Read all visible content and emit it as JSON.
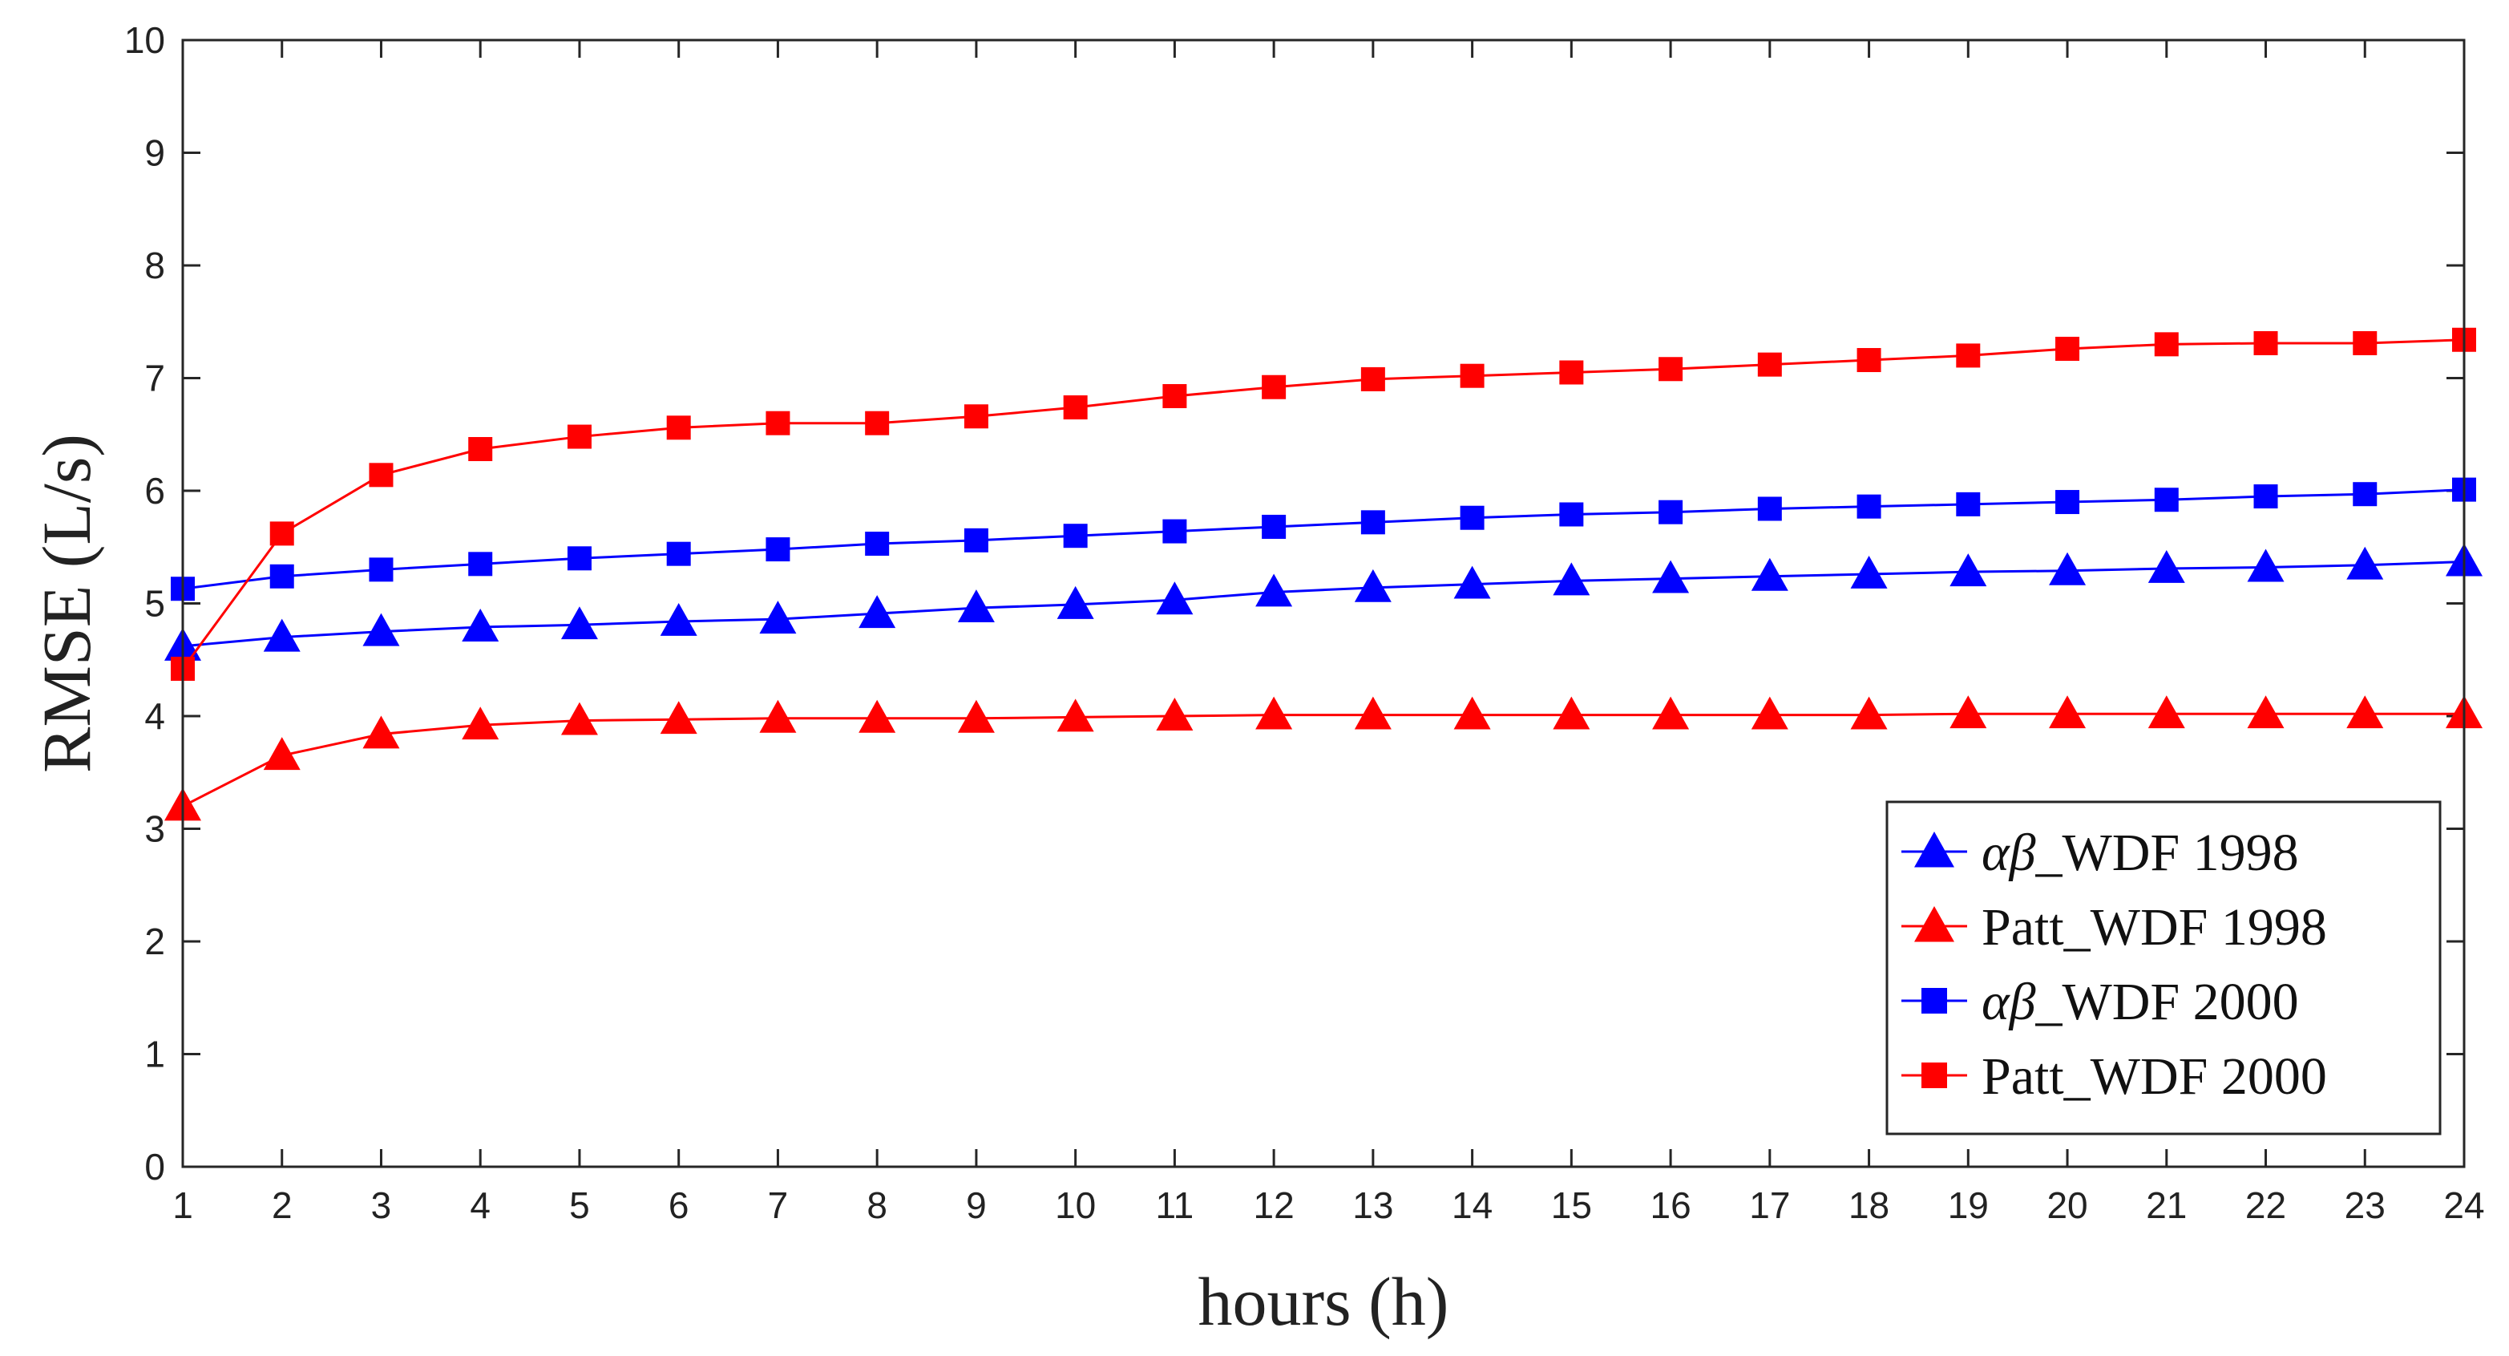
{
  "chart_data": {
    "type": "line",
    "xlabel": "hours (h)",
    "ylabel": "RMSE (L/s)",
    "xlim": [
      1,
      24
    ],
    "ylim": [
      0,
      10
    ],
    "xticks": [
      1,
      2,
      3,
      4,
      5,
      6,
      7,
      8,
      9,
      10,
      11,
      12,
      13,
      14,
      15,
      16,
      17,
      18,
      19,
      20,
      21,
      22,
      23,
      24
    ],
    "yticks": [
      0,
      1,
      2,
      3,
      4,
      5,
      6,
      7,
      8,
      9,
      10
    ],
    "grid": false,
    "legend_position": "bottom-right",
    "x": [
      1,
      2,
      3,
      4,
      5,
      6,
      7,
      8,
      9,
      10,
      11,
      12,
      13,
      14,
      15,
      16,
      17,
      18,
      19,
      20,
      21,
      22,
      23,
      24
    ],
    "series": [
      {
        "name": "αβ_WDF 1998",
        "name_greek": "αβ",
        "name_rest": "_WDF 1998",
        "color": "#0000ff",
        "marker": "triangle",
        "values": [
          4.62,
          4.7,
          4.75,
          4.79,
          4.81,
          4.84,
          4.86,
          4.91,
          4.96,
          4.99,
          5.03,
          5.1,
          5.14,
          5.17,
          5.2,
          5.22,
          5.24,
          5.26,
          5.28,
          5.29,
          5.31,
          5.32,
          5.34,
          5.37
        ]
      },
      {
        "name": "Patt_WDF 1998",
        "name_greek": "",
        "name_rest": "Patt_WDF 1998",
        "color": "#ff0000",
        "marker": "triangle",
        "values": [
          3.2,
          3.65,
          3.84,
          3.92,
          3.96,
          3.97,
          3.98,
          3.98,
          3.98,
          3.99,
          4.0,
          4.01,
          4.01,
          4.01,
          4.01,
          4.01,
          4.01,
          4.01,
          4.02,
          4.02,
          4.02,
          4.02,
          4.02,
          4.02
        ]
      },
      {
        "name": "αβ_WDF 2000",
        "name_greek": "αβ",
        "name_rest": "_WDF 2000",
        "color": "#0000ff",
        "marker": "square",
        "values": [
          5.13,
          5.24,
          5.3,
          5.35,
          5.4,
          5.44,
          5.48,
          5.53,
          5.56,
          5.6,
          5.64,
          5.68,
          5.72,
          5.76,
          5.79,
          5.81,
          5.84,
          5.86,
          5.88,
          5.9,
          5.92,
          5.95,
          5.97,
          6.01
        ]
      },
      {
        "name": "Patt_WDF 2000",
        "name_greek": "",
        "name_rest": "Patt_WDF 2000",
        "color": "#ff0000",
        "marker": "square",
        "values": [
          4.42,
          5.62,
          6.14,
          6.37,
          6.48,
          6.56,
          6.6,
          6.6,
          6.66,
          6.74,
          6.84,
          6.92,
          6.99,
          7.02,
          7.05,
          7.08,
          7.12,
          7.16,
          7.2,
          7.26,
          7.3,
          7.31,
          7.31,
          7.34
        ]
      }
    ]
  }
}
